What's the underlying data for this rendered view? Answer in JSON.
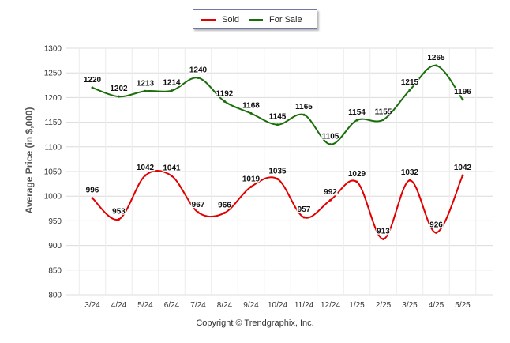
{
  "chart_data": {
    "type": "line",
    "categories": [
      "3/24",
      "4/24",
      "5/24",
      "6/24",
      "7/24",
      "8/24",
      "9/24",
      "10/24",
      "11/24",
      "12/24",
      "1/25",
      "2/25",
      "3/25",
      "4/25",
      "5/25"
    ],
    "series": [
      {
        "name": "Sold",
        "color": "#e00000",
        "values": [
          996,
          953,
          1042,
          1041,
          967,
          966,
          1019,
          1035,
          957,
          992,
          1029,
          913,
          1032,
          926,
          1042
        ]
      },
      {
        "name": "For Sale",
        "color": "#1a6e0a",
        "values": [
          1220,
          1202,
          1213,
          1214,
          1240,
          1192,
          1168,
          1145,
          1165,
          1105,
          1154,
          1155,
          1215,
          1265,
          1196
        ]
      }
    ],
    "ylabel": "Average Price (in $,000)",
    "xlabel": "",
    "ylim": [
      800,
      1300
    ],
    "yticks": [
      800,
      850,
      900,
      950,
      1000,
      1050,
      1100,
      1150,
      1200,
      1250,
      1300
    ],
    "grid": true,
    "legend_position": "top-center"
  },
  "copyright": "Copyright © Trendgraphix, Inc."
}
